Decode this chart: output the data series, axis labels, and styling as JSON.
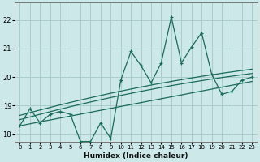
{
  "xlabel": "Humidex (Indice chaleur)",
  "bg_color": "#cce8e8",
  "grid_color": "#aacccc",
  "line_color": "#1a6b5a",
  "xlim": [
    -0.5,
    23.5
  ],
  "ylim": [
    17.75,
    22.6
  ],
  "x_ticks": [
    0,
    1,
    2,
    3,
    4,
    5,
    6,
    7,
    8,
    9,
    10,
    11,
    12,
    13,
    14,
    15,
    16,
    17,
    18,
    19,
    20,
    21,
    22,
    23
  ],
  "y_ticks": [
    18,
    19,
    20,
    21,
    22
  ],
  "main_x": [
    0,
    1,
    2,
    3,
    4,
    5,
    6,
    7,
    8,
    9,
    10,
    11,
    12,
    13,
    14,
    15,
    16,
    17,
    18,
    19,
    20,
    21,
    22,
    23
  ],
  "main_y": [
    18.3,
    18.9,
    18.4,
    18.7,
    18.8,
    18.7,
    17.75,
    17.75,
    18.4,
    17.85,
    19.9,
    20.9,
    20.4,
    19.8,
    20.5,
    22.1,
    20.5,
    21.05,
    21.55,
    20.1,
    19.4,
    19.5,
    19.9,
    20.0
  ],
  "trend_linear_start": 18.3,
  "trend_linear_end": 19.85,
  "trend2_pts_x": [
    0,
    2,
    5,
    10,
    15,
    19,
    23
  ],
  "trend2_pts_y": [
    18.55,
    18.7,
    18.9,
    19.35,
    19.75,
    19.95,
    20.1
  ],
  "trend3_pts_x": [
    0,
    2,
    5,
    10,
    15,
    19,
    23
  ],
  "trend3_pts_y": [
    18.7,
    18.85,
    19.05,
    19.5,
    19.9,
    20.1,
    20.25
  ]
}
